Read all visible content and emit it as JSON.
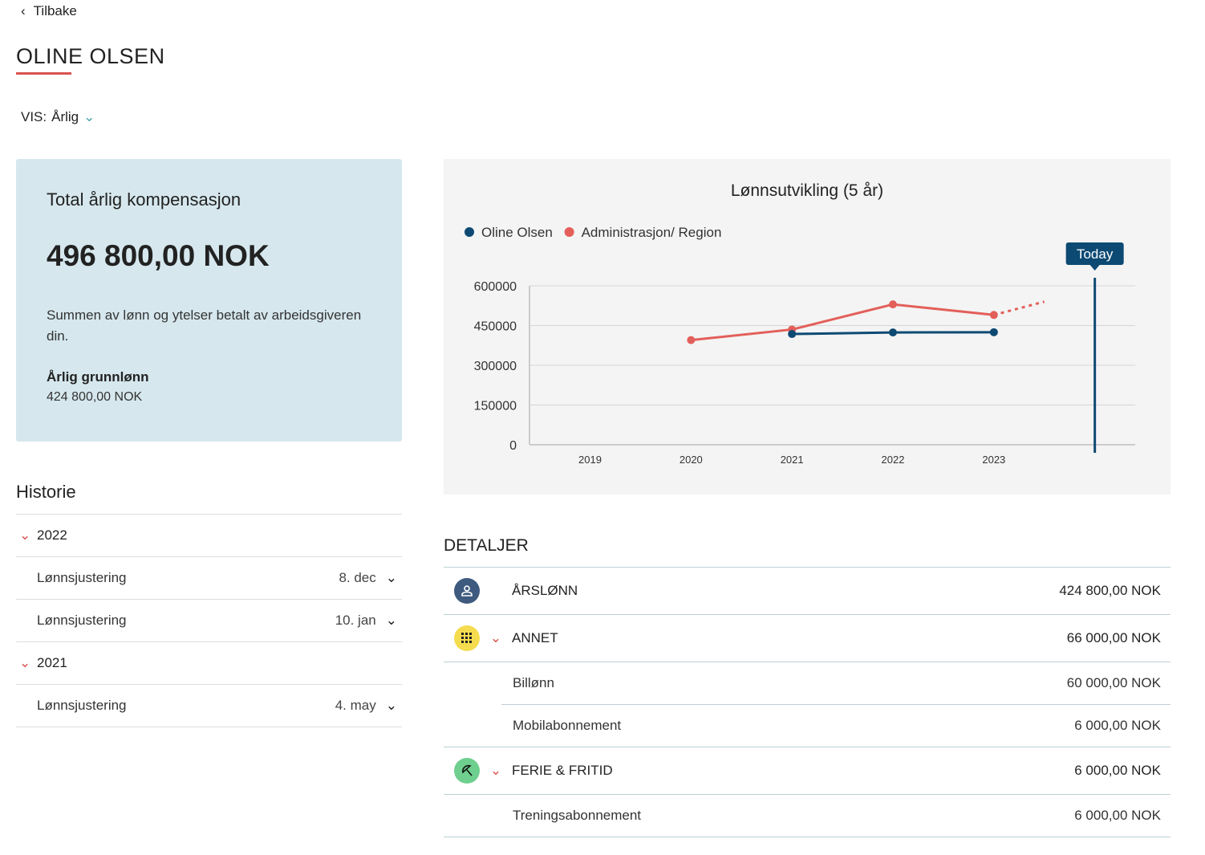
{
  "nav": {
    "back_label": "Tilbake"
  },
  "header": {
    "title": "OLINE OLSEN"
  },
  "view": {
    "label": "VIS:",
    "value": "Årlig"
  },
  "summary": {
    "title": "Total årlig kompensasjon",
    "amount": "496 800,00 NOK",
    "description": "Summen av lønn og ytelser betalt av arbeidsgiveren din.",
    "base_label": "Årlig grunnlønn",
    "base_value": "424 800,00 NOK"
  },
  "history": {
    "title": "Historie",
    "years": [
      {
        "year": "2022",
        "items": [
          {
            "label": "Lønnsjustering",
            "date": "8. dec"
          },
          {
            "label": "Lønnsjustering",
            "date": "10. jan"
          }
        ]
      },
      {
        "year": "2021",
        "items": [
          {
            "label": "Lønnsjustering",
            "date": "4. may"
          }
        ]
      }
    ]
  },
  "chart_data": {
    "type": "line",
    "title": "Lønnsutvikling (5 år)",
    "x_ticks": [
      "2019",
      "2020",
      "2021",
      "2022",
      "2023"
    ],
    "y_ticks": [
      "0",
      "150000",
      "300000",
      "450000",
      "600000"
    ],
    "ylim": [
      0,
      600000
    ],
    "xlim": [
      2018.4,
      2024.4
    ],
    "grid": true,
    "legend_position": "top-left",
    "series": [
      {
        "name": "Oline Olsen",
        "color": "#0d4a73",
        "x": [
          2021,
          2022,
          2023
        ],
        "y": [
          418000,
          424000,
          424800
        ]
      },
      {
        "name": "Administrasjon/ Region",
        "color": "#e35f5a",
        "x": [
          2020,
          2021,
          2022,
          2023
        ],
        "y": [
          395000,
          435000,
          530000,
          490000
        ],
        "projection": {
          "x": [
            2023,
            2023.5
          ],
          "y": [
            490000,
            540000
          ]
        }
      }
    ],
    "marker": {
      "label": "Today",
      "x": 2024,
      "color": "#0d4a73"
    }
  },
  "details": {
    "title": "DETALJER",
    "groups": [
      {
        "label": "ÅRSLØNN",
        "value": "424 800,00 NOK",
        "icon": "person-icon",
        "color": "#3e5a7e",
        "items": []
      },
      {
        "label": "ANNET",
        "value": "66 000,00 NOK",
        "icon": "grid-icon",
        "color": "#f5dc4f",
        "items": [
          {
            "label": "Billønn",
            "value": "60 000,00 NOK"
          },
          {
            "label": "Mobilabonnement",
            "value": "6 000,00 NOK"
          }
        ]
      },
      {
        "label": "FERIE & FRITID",
        "value": "6 000,00 NOK",
        "icon": "umbrella-icon",
        "color": "#6fcf8e",
        "items": [
          {
            "label": "Treningsabonnement",
            "value": "6 000,00 NOK"
          }
        ]
      }
    ]
  }
}
